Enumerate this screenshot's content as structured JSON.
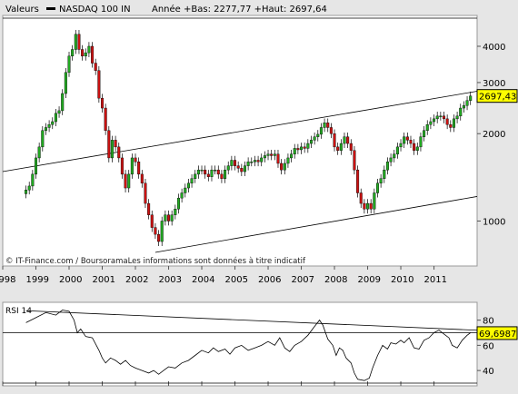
{
  "header": {
    "values_label": "Valeurs",
    "series_name": "NASDAQ 100 IN",
    "year_stats": "Année +Bas: 2277,77 +Haut: 2697,64"
  },
  "copyright": "© IT-Finance.com / BoursoramaLes informations sont données à titre indicatif",
  "colors": {
    "up_candle": "#22aa22",
    "down_candle": "#cc1111",
    "background": "#e6e6e6",
    "panel": "#ffffff"
  },
  "chart_data": [
    {
      "type": "candlestick",
      "series_name": "NASDAQ 100 IN",
      "scale": "log",
      "ylim": [
        700,
        5000
      ],
      "y_ticks": [
        "1000",
        "2000",
        "3000",
        "4000"
      ],
      "y_tick_values": [
        1000,
        2000,
        3000,
        4000
      ],
      "x_ticks": [
        "1998",
        "1999",
        "2000",
        "2001",
        "2002",
        "2003",
        "2004",
        "2005",
        "2006",
        "2007",
        "2008",
        "2009",
        "2010",
        "2011"
      ],
      "xlim": [
        1998.0,
        2012.3
      ],
      "last_value_label": "2697,43",
      "last_value": 2697.43,
      "closes": [
        [
          1998.7,
          1280
        ],
        [
          1998.8,
          1320
        ],
        [
          1998.9,
          1450
        ],
        [
          1999.0,
          1650
        ],
        [
          1999.1,
          1800
        ],
        [
          1999.2,
          2050
        ],
        [
          1999.3,
          2100
        ],
        [
          1999.4,
          2150
        ],
        [
          1999.5,
          2200
        ],
        [
          1999.6,
          2350
        ],
        [
          1999.7,
          2400
        ],
        [
          1999.8,
          2750
        ],
        [
          1999.9,
          3250
        ],
        [
          2000.0,
          3700
        ],
        [
          2000.1,
          3900
        ],
        [
          2000.2,
          4400
        ],
        [
          2000.3,
          3900
        ],
        [
          2000.4,
          3700
        ],
        [
          2000.5,
          3800
        ],
        [
          2000.6,
          4000
        ],
        [
          2000.7,
          3500
        ],
        [
          2000.8,
          3300
        ],
        [
          2000.9,
          2650
        ],
        [
          2001.0,
          2450
        ],
        [
          2001.1,
          2050
        ],
        [
          2001.2,
          1650
        ],
        [
          2001.3,
          1900
        ],
        [
          2001.4,
          1800
        ],
        [
          2001.5,
          1650
        ],
        [
          2001.6,
          1450
        ],
        [
          2001.7,
          1300
        ],
        [
          2001.8,
          1450
        ],
        [
          2001.9,
          1650
        ],
        [
          2002.0,
          1600
        ],
        [
          2002.1,
          1450
        ],
        [
          2002.2,
          1350
        ],
        [
          2002.3,
          1150
        ],
        [
          2002.4,
          1050
        ],
        [
          2002.5,
          950
        ],
        [
          2002.6,
          900
        ],
        [
          2002.7,
          850
        ],
        [
          2002.8,
          1000
        ],
        [
          2002.9,
          1050
        ],
        [
          2003.0,
          1000
        ],
        [
          2003.1,
          1050
        ],
        [
          2003.2,
          1100
        ],
        [
          2003.3,
          1200
        ],
        [
          2003.4,
          1250
        ],
        [
          2003.5,
          1300
        ],
        [
          2003.6,
          1350
        ],
        [
          2003.7,
          1400
        ],
        [
          2003.8,
          1450
        ],
        [
          2003.9,
          1500
        ],
        [
          2004.0,
          1500
        ],
        [
          2004.1,
          1450
        ],
        [
          2004.2,
          1420
        ],
        [
          2004.3,
          1500
        ],
        [
          2004.4,
          1500
        ],
        [
          2004.5,
          1450
        ],
        [
          2004.6,
          1400
        ],
        [
          2004.7,
          1500
        ],
        [
          2004.8,
          1550
        ],
        [
          2004.9,
          1620
        ],
        [
          2005.0,
          1550
        ],
        [
          2005.1,
          1520
        ],
        [
          2005.2,
          1480
        ],
        [
          2005.3,
          1550
        ],
        [
          2005.4,
          1600
        ],
        [
          2005.5,
          1600
        ],
        [
          2005.6,
          1620
        ],
        [
          2005.7,
          1600
        ],
        [
          2005.8,
          1650
        ],
        [
          2005.9,
          1680
        ],
        [
          2006.0,
          1700
        ],
        [
          2006.1,
          1680
        ],
        [
          2006.2,
          1700
        ],
        [
          2006.3,
          1580
        ],
        [
          2006.4,
          1500
        ],
        [
          2006.5,
          1580
        ],
        [
          2006.6,
          1650
        ],
        [
          2006.7,
          1700
        ],
        [
          2006.8,
          1780
        ],
        [
          2006.9,
          1760
        ],
        [
          2007.0,
          1800
        ],
        [
          2007.1,
          1780
        ],
        [
          2007.2,
          1850
        ],
        [
          2007.3,
          1900
        ],
        [
          2007.4,
          1950
        ],
        [
          2007.5,
          1990
        ],
        [
          2007.6,
          2100
        ],
        [
          2007.7,
          2180
        ],
        [
          2007.8,
          2100
        ],
        [
          2007.9,
          2000
        ],
        [
          2008.0,
          1800
        ],
        [
          2008.1,
          1750
        ],
        [
          2008.2,
          1850
        ],
        [
          2008.3,
          1950
        ],
        [
          2008.4,
          1850
        ],
        [
          2008.5,
          1750
        ],
        [
          2008.6,
          1500
        ],
        [
          2008.7,
          1250
        ],
        [
          2008.8,
          1150
        ],
        [
          2008.9,
          1100
        ],
        [
          2009.0,
          1150
        ],
        [
          2009.1,
          1100
        ],
        [
          2009.2,
          1250
        ],
        [
          2009.3,
          1350
        ],
        [
          2009.4,
          1400
        ],
        [
          2009.5,
          1500
        ],
        [
          2009.6,
          1600
        ],
        [
          2009.7,
          1650
        ],
        [
          2009.8,
          1700
        ],
        [
          2009.9,
          1800
        ],
        [
          2010.0,
          1850
        ],
        [
          2010.1,
          1950
        ],
        [
          2010.2,
          1900
        ],
        [
          2010.3,
          1850
        ],
        [
          2010.4,
          1750
        ],
        [
          2010.5,
          1800
        ],
        [
          2010.6,
          1950
        ],
        [
          2010.7,
          2050
        ],
        [
          2010.8,
          2150
        ],
        [
          2010.9,
          2200
        ],
        [
          2011.0,
          2250
        ],
        [
          2011.1,
          2300
        ],
        [
          2011.2,
          2300
        ],
        [
          2011.3,
          2250
        ],
        [
          2011.4,
          2150
        ],
        [
          2011.5,
          2100
        ],
        [
          2011.6,
          2250
        ],
        [
          2011.7,
          2300
        ],
        [
          2011.8,
          2450
        ],
        [
          2011.9,
          2500
        ],
        [
          2012.0,
          2600
        ],
        [
          2012.1,
          2697
        ]
      ],
      "trendlines": [
        [
          [
            1998.0,
            1480
          ],
          [
            2012.3,
            2800
          ]
        ],
        [
          [
            2002.6,
            780
          ],
          [
            2012.3,
            1215
          ]
        ]
      ]
    },
    {
      "type": "line",
      "series_name": "RSI 14",
      "ylim": [
        30,
        92
      ],
      "y_ticks": [
        "40",
        "60",
        "80"
      ],
      "y_tick_values": [
        40,
        60,
        80
      ],
      "last_value_label": "69,6987",
      "last_value": 69.6987,
      "reference_levels": [
        70,
        30
      ],
      "values": [
        [
          1998.7,
          78
        ],
        [
          1999.0,
          82
        ],
        [
          1999.3,
          86
        ],
        [
          1999.6,
          84
        ],
        [
          1999.8,
          88
        ],
        [
          2000.0,
          87
        ],
        [
          2000.15,
          80
        ],
        [
          2000.25,
          70
        ],
        [
          2000.35,
          73
        ],
        [
          2000.5,
          67
        ],
        [
          2000.7,
          66
        ],
        [
          2000.9,
          56
        ],
        [
          2001.0,
          50
        ],
        [
          2001.1,
          46
        ],
        [
          2001.25,
          50
        ],
        [
          2001.4,
          48
        ],
        [
          2001.55,
          45
        ],
        [
          2001.7,
          48
        ],
        [
          2001.85,
          44
        ],
        [
          2002.0,
          42
        ],
        [
          2002.2,
          40
        ],
        [
          2002.4,
          38
        ],
        [
          2002.55,
          40
        ],
        [
          2002.7,
          37
        ],
        [
          2002.85,
          40
        ],
        [
          2003.0,
          43
        ],
        [
          2003.2,
          42
        ],
        [
          2003.4,
          46
        ],
        [
          2003.6,
          48
        ],
        [
          2003.8,
          52
        ],
        [
          2004.0,
          56
        ],
        [
          2004.2,
          54
        ],
        [
          2004.35,
          58
        ],
        [
          2004.5,
          55
        ],
        [
          2004.7,
          57
        ],
        [
          2004.85,
          53
        ],
        [
          2005.0,
          58
        ],
        [
          2005.2,
          60
        ],
        [
          2005.4,
          56
        ],
        [
          2005.6,
          58
        ],
        [
          2005.8,
          60
        ],
        [
          2006.0,
          63
        ],
        [
          2006.2,
          60
        ],
        [
          2006.35,
          66
        ],
        [
          2006.5,
          58
        ],
        [
          2006.65,
          55
        ],
        [
          2006.8,
          60
        ],
        [
          2007.0,
          63
        ],
        [
          2007.2,
          68
        ],
        [
          2007.4,
          75
        ],
        [
          2007.55,
          80
        ],
        [
          2007.65,
          76
        ],
        [
          2007.8,
          65
        ],
        [
          2007.95,
          60
        ],
        [
          2008.05,
          52
        ],
        [
          2008.15,
          58
        ],
        [
          2008.25,
          56
        ],
        [
          2008.35,
          50
        ],
        [
          2008.5,
          46
        ],
        [
          2008.6,
          38
        ],
        [
          2008.7,
          33
        ],
        [
          2008.9,
          32
        ],
        [
          2009.05,
          34
        ],
        [
          2009.15,
          42
        ],
        [
          2009.3,
          52
        ],
        [
          2009.45,
          60
        ],
        [
          2009.6,
          57
        ],
        [
          2009.7,
          62
        ],
        [
          2009.85,
          61
        ],
        [
          2010.0,
          64
        ],
        [
          2010.1,
          62
        ],
        [
          2010.25,
          66
        ],
        [
          2010.4,
          58
        ],
        [
          2010.55,
          57
        ],
        [
          2010.7,
          64
        ],
        [
          2010.85,
          66
        ],
        [
          2011.0,
          70
        ],
        [
          2011.15,
          72
        ],
        [
          2011.3,
          69
        ],
        [
          2011.45,
          66
        ],
        [
          2011.55,
          60
        ],
        [
          2011.7,
          58
        ],
        [
          2011.85,
          64
        ],
        [
          2012.0,
          68
        ],
        [
          2012.1,
          70
        ]
      ],
      "trendlines": [
        [
          [
            1998.7,
            87.5
          ],
          [
            2012.3,
            72
          ]
        ]
      ]
    }
  ]
}
